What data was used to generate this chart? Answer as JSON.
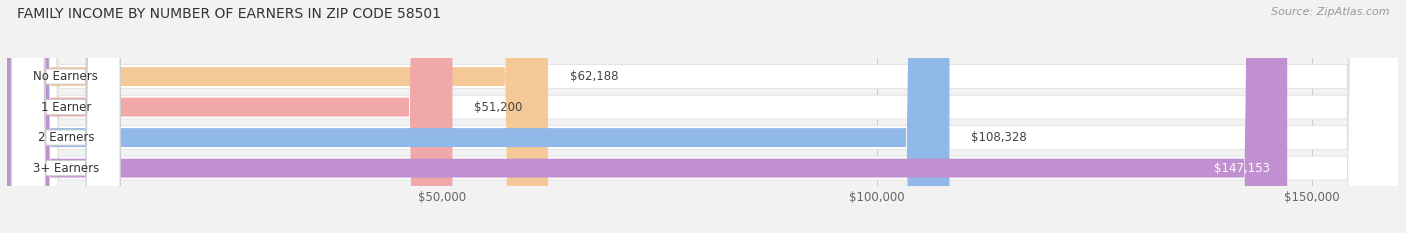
{
  "title": "FAMILY INCOME BY NUMBER OF EARNERS IN ZIP CODE 58501",
  "source": "Source: ZipAtlas.com",
  "categories": [
    "No Earners",
    "1 Earner",
    "2 Earners",
    "3+ Earners"
  ],
  "values": [
    62188,
    51200,
    108328,
    147153
  ],
  "bar_colors": [
    "#f5c898",
    "#f0a8a8",
    "#90b8e8",
    "#c090d0"
  ],
  "label_colors": [
    "#444444",
    "#444444",
    "#444444",
    "#ffffff"
  ],
  "background_color": "#f2f2f2",
  "xlim_min": 0,
  "xlim_max": 160000,
  "xticks": [
    50000,
    100000,
    150000
  ],
  "xtick_labels": [
    "$50,000",
    "$100,000",
    "$150,000"
  ],
  "title_fontsize": 10,
  "source_fontsize": 8,
  "bar_label_fontsize": 8.5,
  "category_fontsize": 8.5,
  "tick_fontsize": 8.5
}
